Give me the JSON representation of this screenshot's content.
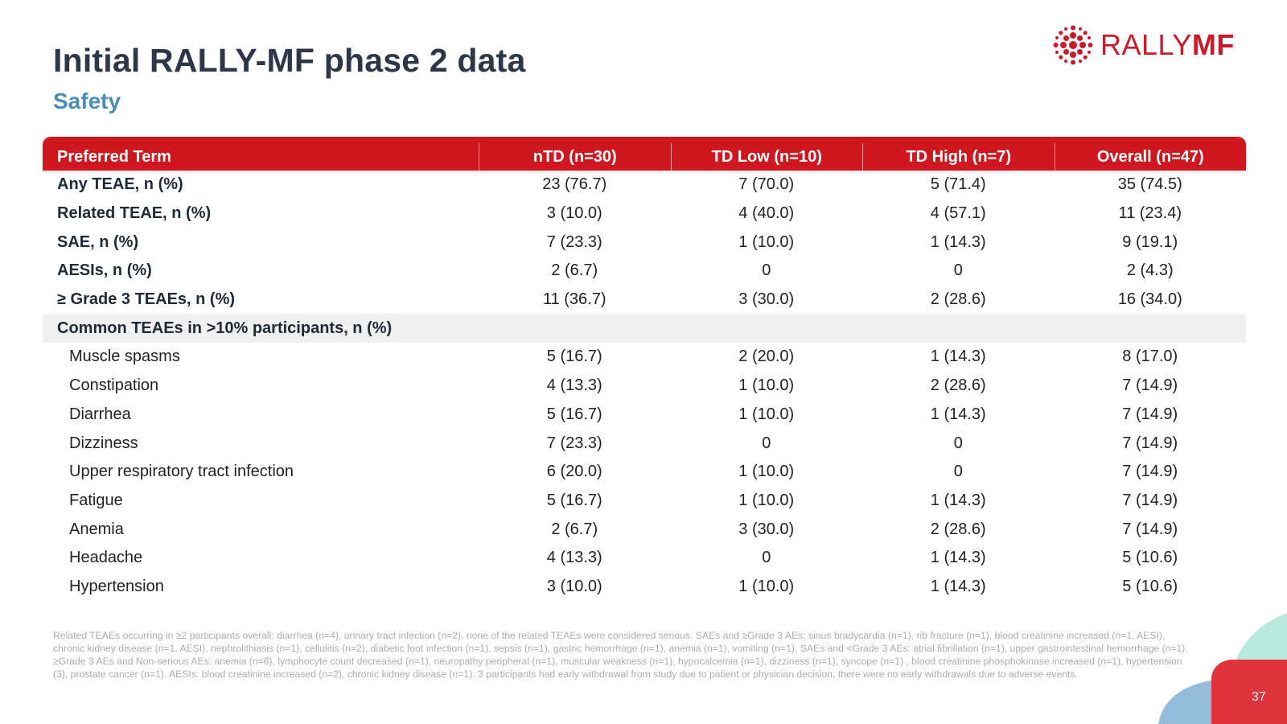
{
  "header": {
    "title": "Initial RALLY-MF phase 2 data",
    "subtitle": "Safety"
  },
  "logo": {
    "text_light": "RALLY",
    "text_bold": "MF",
    "brand_color": "#cc1a2a"
  },
  "table": {
    "columns": [
      "Preferred Term",
      "nTD (n=30)",
      "TD Low (n=10)",
      "TD High (n=7)",
      "Overall (n=47)"
    ],
    "summary_rows": [
      {
        "label": "Any TEAE, n (%)",
        "values": [
          "23 (76.7)",
          "7 (70.0)",
          "5 (71.4)",
          "35 (74.5)"
        ]
      },
      {
        "label": "Related TEAE, n (%)",
        "values": [
          "3 (10.0)",
          "4 (40.0)",
          "4 (57.1)",
          "11 (23.4)"
        ]
      },
      {
        "label": "SAE, n (%)",
        "values": [
          "7 (23.3)",
          "1 (10.0)",
          "1 (14.3)",
          "9 (19.1)"
        ]
      },
      {
        "label": "AESIs, n (%)",
        "values": [
          "2 (6.7)",
          "0",
          "0",
          "2 (4.3)"
        ]
      },
      {
        "label": "≥ Grade 3 TEAEs, n (%)",
        "values": [
          "11 (36.7)",
          "3 (30.0)",
          "2 (28.6)",
          "16 (34.0)"
        ]
      }
    ],
    "section_label": "Common TEAEs in >10% participants, n (%)",
    "common_rows": [
      {
        "label": "Muscle spasms",
        "values": [
          "5 (16.7)",
          "2 (20.0)",
          "1 (14.3)",
          "8 (17.0)"
        ]
      },
      {
        "label": "Constipation",
        "values": [
          "4 (13.3)",
          "1 (10.0)",
          "2 (28.6)",
          "7 (14.9)"
        ]
      },
      {
        "label": "Diarrhea",
        "values": [
          "5 (16.7)",
          "1 (10.0)",
          "1 (14.3)",
          "7 (14.9)"
        ]
      },
      {
        "label": "Dizziness",
        "values": [
          "7 (23.3)",
          "0",
          "0",
          "7 (14.9)"
        ]
      },
      {
        "label": "Upper respiratory tract infection",
        "values": [
          "6 (20.0)",
          "1 (10.0)",
          "0",
          "7 (14.9)"
        ]
      },
      {
        "label": "Fatigue",
        "values": [
          "5 (16.7)",
          "1 (10.0)",
          "1 (14.3)",
          "7 (14.9)"
        ]
      },
      {
        "label": "Anemia",
        "values": [
          "2 (6.7)",
          "3 (30.0)",
          "2 (28.6)",
          "7 (14.9)"
        ]
      },
      {
        "label": "Headache",
        "values": [
          "4 (13.3)",
          "0",
          "1 (14.3)",
          "5 (10.6)"
        ]
      },
      {
        "label": "Hypertension",
        "values": [
          "3 (10.0)",
          "1 (10.0)",
          "1 (14.3)",
          "5 (10.6)"
        ]
      }
    ]
  },
  "footnote": "Related TEAEs occurring in ≥2 participants overall: diarrhea (n=4), urinary tract infection (n=2), none of the related TEAEs were considered serious. SAEs and ≥Grade 3 AEs: sinus bradycardia (n=1), rib fracture (n=1), blood creatinine increased (n=1, AESI), chronic kidney disease (n=1, AESI), nephrolithiasis (n=1), cellulitis (n=2), diabetic foot infection (n=1), sepsis (n=1), gastric hemorrhage (n=1), anemia (n=1), vomiting (n=1). SAEs and <Grade 3 AEs: atrial fibrillation (n=1), upper gastrointestinal hemorrhage (n=1). ≥Grade 3 AEs and Non-serious AEs: anemia (n=6), lymphocyte count decreased (n=1), neuropathy peripheral (n=1), muscular weakness (n=1), hypocalcemia (n=1), dizziness (n=1), syncope (n=1) , blood creatinine phosphokinase increased (n=1), hypertension (3), prostate cancer (n=1). AESIs: blood creatinine increased (n=2), chronic kidney disease (n=1). 3 participants had early withdrawal from study due to patient or physician decision; there were no early withdrawals due to adverse events.",
  "page_number": "37",
  "colors": {
    "header_red": "#d0161e",
    "title": "#2d3748",
    "subtitle": "#4a8db7",
    "section_bg": "#f0f0f0",
    "deco_teal": "#7fd6c4",
    "deco_blue": "#6fa6cf",
    "deco_red": "#e0333c"
  }
}
